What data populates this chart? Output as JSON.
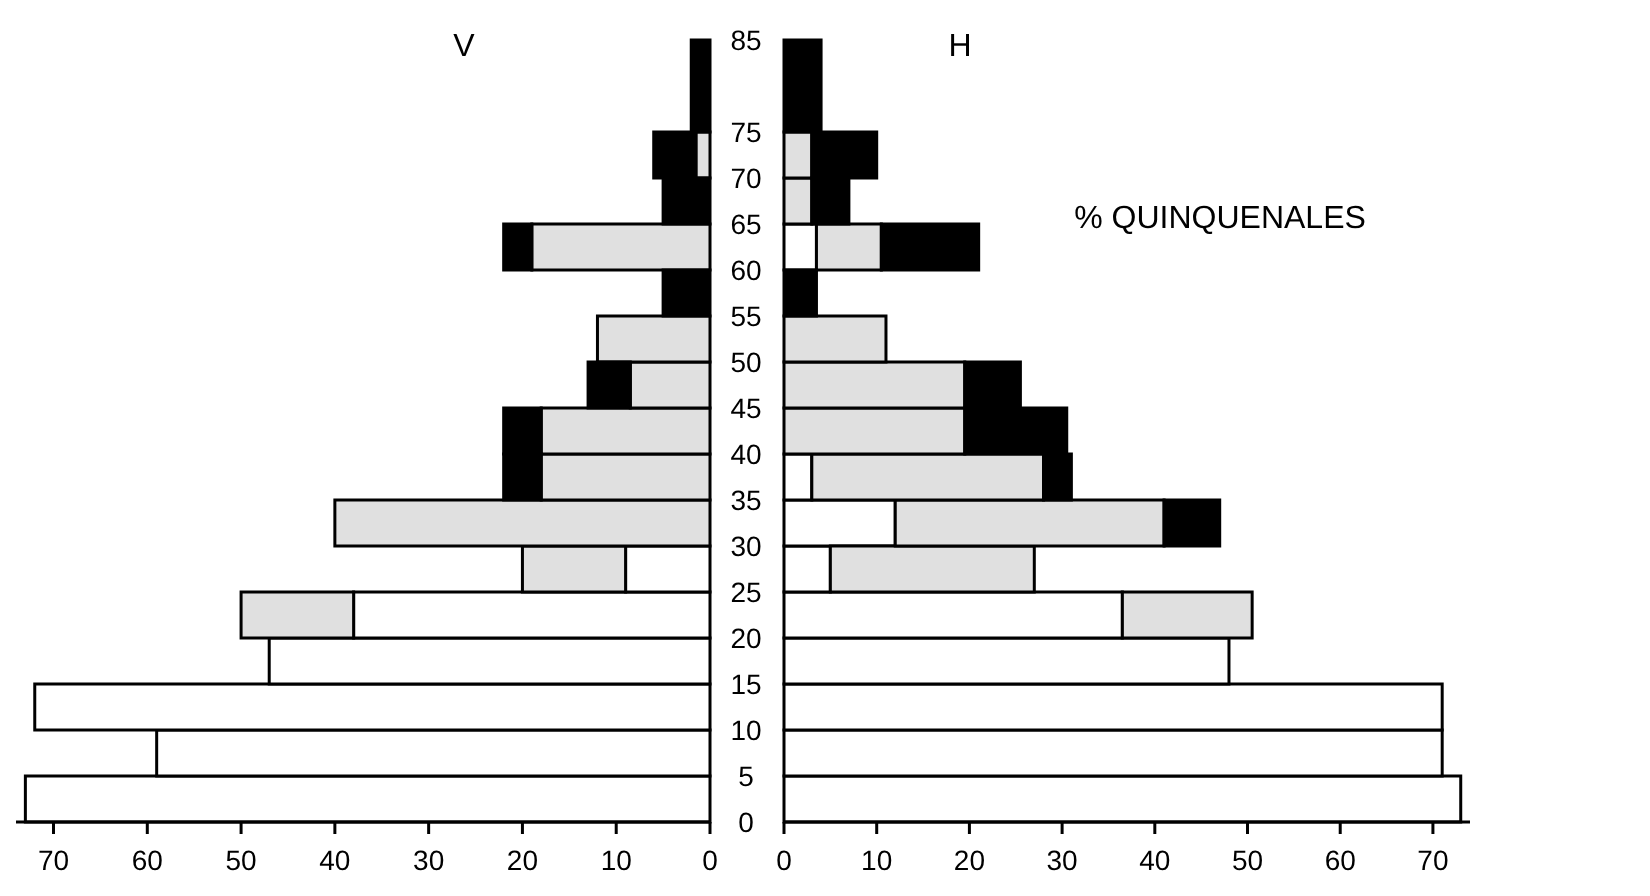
{
  "chart_data": [
    {
      "type": "bar",
      "title": "V",
      "orientation": "horizontal",
      "stacked": true,
      "x": [
        2.5,
        7.5,
        12.5,
        17.5,
        22.5,
        27.5,
        32.5,
        37.5,
        42.5,
        47.5,
        52.5,
        57.5,
        62.5,
        67.5,
        72.5,
        80
      ],
      "ylim": [
        0,
        85
      ],
      "yticks": [
        0,
        5,
        10,
        15,
        20,
        25,
        30,
        35,
        40,
        45,
        50,
        55,
        60,
        65,
        70,
        75,
        85
      ],
      "xlim": [
        74,
        0
      ],
      "xticks": [
        70,
        60,
        50,
        40,
        30,
        20,
        10,
        0
      ],
      "series": [
        {
          "color": "#ffffff",
          "values": [
            73,
            59,
            72,
            47,
            38,
            9,
            0,
            0,
            0,
            0,
            0,
            0,
            0,
            0,
            0,
            0
          ]
        },
        {
          "color": "#e0e0e0",
          "values": [
            0,
            0,
            0,
            0,
            12,
            11,
            40,
            18,
            18,
            8.5,
            12,
            0,
            19,
            0,
            1.5,
            0
          ]
        },
        {
          "color": "#000000",
          "values": [
            0,
            0,
            0,
            0,
            0,
            0,
            0,
            4,
            4,
            4.5,
            0,
            5,
            3,
            5,
            4.5,
            2
          ]
        }
      ]
    },
    {
      "type": "bar",
      "title": "H",
      "orientation": "horizontal",
      "stacked": true,
      "tick_labels": "x",
      "x": [
        2.5,
        7.5,
        12.5,
        17.5,
        22.5,
        27.5,
        32.5,
        37.5,
        42.5,
        47.5,
        52.5,
        57.5,
        62.5,
        67.5,
        72.5,
        80
      ],
      "ylim": [
        0,
        85
      ],
      "yticks": [
        0,
        5,
        10,
        15,
        20,
        25,
        30,
        35,
        40,
        45,
        50,
        55,
        60,
        65,
        70,
        75,
        85
      ],
      "xlim": [
        0,
        74
      ],
      "xticks": [
        0,
        10,
        20,
        30,
        40,
        50,
        60,
        70
      ],
      "annotations": [
        "% QUINQUENALES"
      ],
      "series": [
        {
          "color": "#ffffff",
          "values": [
            73,
            71,
            71,
            48,
            36.5,
            5,
            12,
            3,
            0,
            0,
            0,
            0,
            3.5,
            0,
            0,
            0
          ]
        },
        {
          "color": "#e0e0e0",
          "values": [
            0,
            0,
            0,
            0,
            14,
            22,
            29,
            25,
            19.5,
            19.5,
            11,
            0,
            7,
            3,
            3,
            0
          ]
        },
        {
          "color": "#000000",
          "values": [
            0,
            0,
            0,
            0,
            0,
            0,
            6,
            3,
            11,
            6,
            0,
            3.5,
            10.5,
            4,
            7,
            4
          ]
        }
      ]
    }
  ]
}
